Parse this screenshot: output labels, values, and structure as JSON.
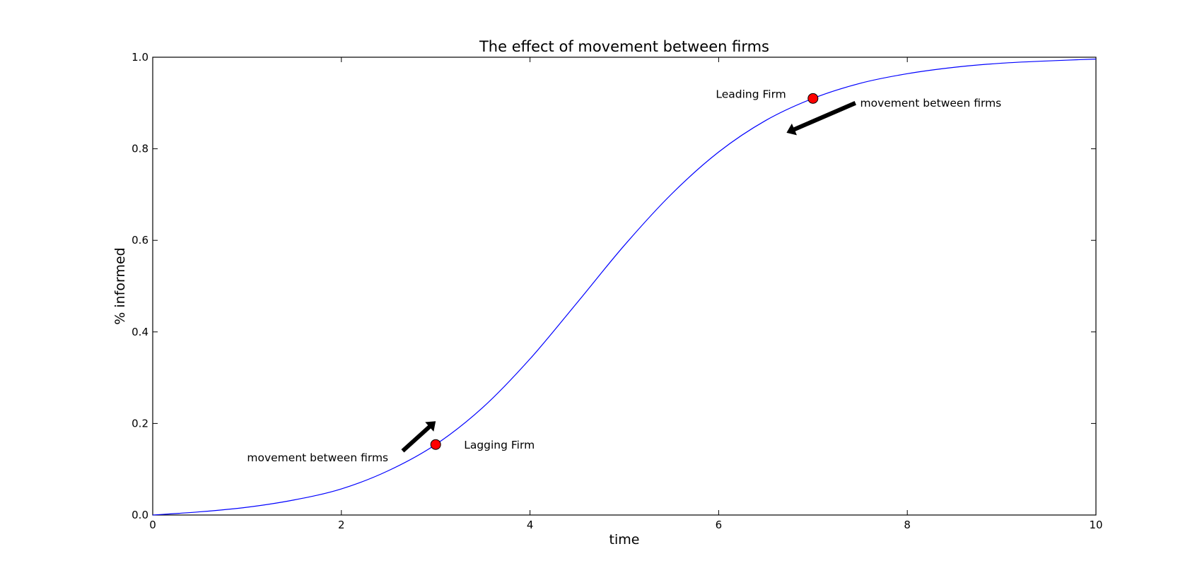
{
  "chart_data": {
    "type": "line",
    "title": "The effect of movement between firms",
    "xlabel": "time",
    "ylabel": "% informed",
    "xlim": [
      0,
      10
    ],
    "ylim": [
      0,
      1.0
    ],
    "xticks": [
      0,
      2,
      4,
      6,
      8,
      10
    ],
    "xtick_labels": [
      "0",
      "2",
      "4",
      "6",
      "8",
      "10"
    ],
    "yticks": [
      0,
      0.2,
      0.4,
      0.6,
      0.8,
      1.0
    ],
    "ytick_labels": [
      "0.0",
      "0.2",
      "0.4",
      "0.6",
      "0.8",
      "1.0"
    ],
    "grid": false,
    "legend": "none",
    "series": [
      {
        "color": "#0000ff",
        "x": [
          0,
          0.5,
          1,
          1.5,
          2,
          2.5,
          3,
          3.5,
          4,
          4.5,
          5,
          5.5,
          6,
          6.5,
          7,
          7.5,
          8,
          8.5,
          9,
          9.5,
          10
        ],
        "y": [
          0.0,
          0.007,
          0.017,
          0.033,
          0.057,
          0.097,
          0.154,
          0.235,
          0.341,
          0.464,
          0.589,
          0.701,
          0.793,
          0.862,
          0.91,
          0.943,
          0.964,
          0.978,
          0.987,
          0.992,
          0.996
        ]
      }
    ],
    "points": [
      {
        "label": "Lagging Firm",
        "x": 3.0,
        "y": 0.154,
        "color": "#ff0000"
      },
      {
        "label": "Leading Firm",
        "x": 7.0,
        "y": 0.91,
        "color": "#ff0000"
      }
    ],
    "annotations": [
      {
        "text": "movement between firms",
        "text_x": 1.0,
        "text_y": 0.125,
        "arrow_from": [
          2.65,
          0.14
        ],
        "arrow_to": [
          3.0,
          0.205
        ]
      },
      {
        "text": "movement between firms",
        "text_x": 7.5,
        "text_y": 0.9,
        "arrow_from": [
          7.45,
          0.9
        ],
        "arrow_to": [
          6.72,
          0.835
        ]
      }
    ]
  }
}
